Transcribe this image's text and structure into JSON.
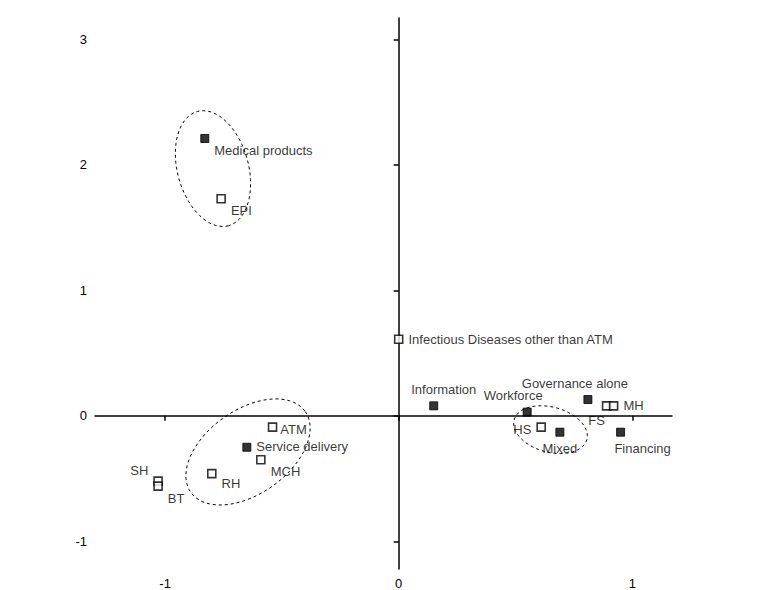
{
  "chart_data": {
    "type": "scatter",
    "xlim": [
      -1.3,
      1.17
    ],
    "xticks": [
      -1,
      0,
      1
    ],
    "ylim": [
      -1.22,
      3.17
    ],
    "yticks": [
      -1,
      0,
      1,
      2,
      3
    ],
    "grid": false,
    "series": [
      {
        "marker": "filled square",
        "color": "#000000",
        "labels": [
          "Medical products",
          "Service delivery",
          "Information",
          "Workforce",
          "Governance alone",
          "Mixed",
          "Financing"
        ],
        "x": [
          -0.83,
          -0.65,
          0.15,
          0.55,
          0.81,
          0.69,
          0.95
        ],
        "y": [
          2.21,
          -0.25,
          0.08,
          0.03,
          0.13,
          -0.13,
          -0.13
        ]
      },
      {
        "marker": "open square",
        "color": "#000000",
        "labels": [
          "EPI",
          "Infectious Diseases other than ATM",
          "ATM",
          "MCH",
          "RH",
          "SH",
          "BT",
          "HS",
          "FS",
          "MH"
        ],
        "x": [
          -0.76,
          0.0,
          -0.54,
          -0.59,
          -0.8,
          -1.03,
          -1.03,
          0.61,
          0.89,
          0.92
        ],
        "y": [
          1.73,
          0.61,
          -0.09,
          -0.35,
          -0.46,
          -0.52,
          -0.56,
          -0.09,
          0.08,
          0.08
        ]
      }
    ],
    "clusters": [
      [
        "Medical products",
        "EPI"
      ],
      [
        "ATM",
        "Service delivery",
        "MCH",
        "RH"
      ],
      [
        "HS",
        "Mixed"
      ]
    ]
  }
}
